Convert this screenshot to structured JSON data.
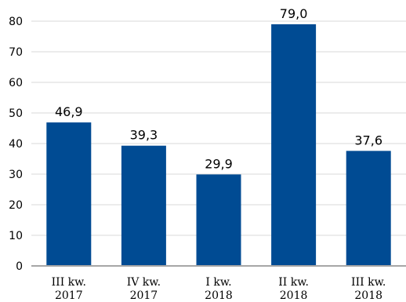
{
  "chart_data": {
    "type": "bar",
    "categories": [
      [
        "III kw.",
        "2017"
      ],
      [
        "IV kw.",
        "2017"
      ],
      [
        "I kw.",
        "2018"
      ],
      [
        "II kw.",
        "2018"
      ],
      [
        "III kw.",
        "2018"
      ]
    ],
    "values": [
      46.9,
      39.3,
      29.9,
      79.0,
      37.6
    ],
    "data_labels": [
      "46,9",
      "39,3",
      "29,9",
      "79,0",
      "37,6"
    ],
    "y_ticks": [
      "0",
      "10",
      "20",
      "30",
      "40",
      "50",
      "60",
      "70",
      "80"
    ],
    "ylim": [
      0,
      80
    ],
    "grid": true,
    "legend": "none",
    "title": "",
    "xlabel": "",
    "ylabel": "",
    "bar_color": "#004b93",
    "grid_color": "#d9d9d9",
    "axis_color": "#a6a6a6"
  }
}
